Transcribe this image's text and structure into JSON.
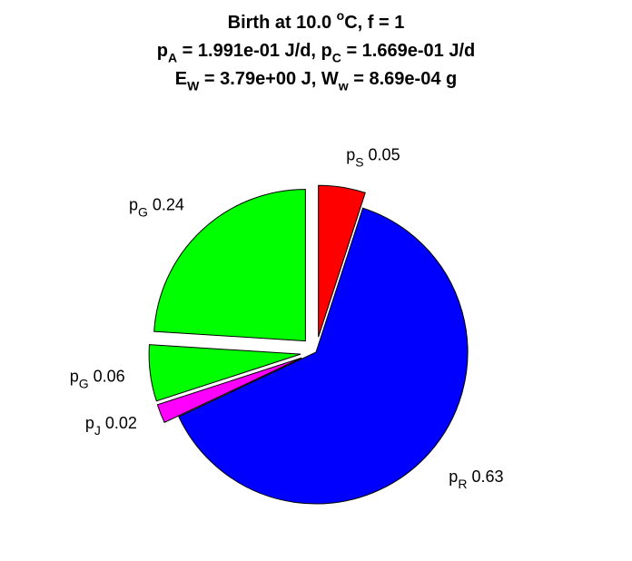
{
  "title": {
    "line1": {
      "text": "Birth at 10.0 ",
      "sup": "o",
      "suffix": "C, f = 1"
    },
    "line2": {
      "p_a": "p",
      "p_a_sub": "A",
      "p_a_val": " = 1.991e-01 J/d, ",
      "p_c": "p",
      "p_c_sub": "C",
      "p_c_val": " = 1.669e-01 J/d"
    },
    "line3": {
      "e_w": "E",
      "e_w_sub": "W",
      "e_w_val": " = 3.79e+00 J, ",
      "w_w": "W",
      "w_w_sub": "w",
      "w_w_val": " = 8.69e-04 g"
    }
  },
  "chart_data": {
    "type": "pie",
    "title": "Birth at 10.0 oC, f = 1",
    "slices": [
      {
        "label": "p",
        "sub": "S",
        "value": 0.05,
        "text": "0.05",
        "color": "#ff0000",
        "exploded": true
      },
      {
        "label": "p",
        "sub": "R",
        "value": 0.63,
        "text": "0.63",
        "color": "#0000ff",
        "exploded": false
      },
      {
        "label": "p",
        "sub": "J",
        "value": 0.02,
        "text": "0.02",
        "color": "#ff00ff",
        "exploded": true
      },
      {
        "label": "p",
        "sub": "G",
        "value": 0.06,
        "text": "0.06",
        "color": "#00ff00",
        "exploded": true
      },
      {
        "label": "p",
        "sub": "G",
        "value": 0.24,
        "text": "0.24",
        "color": "#00ff00",
        "exploded": true
      }
    ],
    "direction": "clockwise",
    "start": "top",
    "legend": "none"
  }
}
